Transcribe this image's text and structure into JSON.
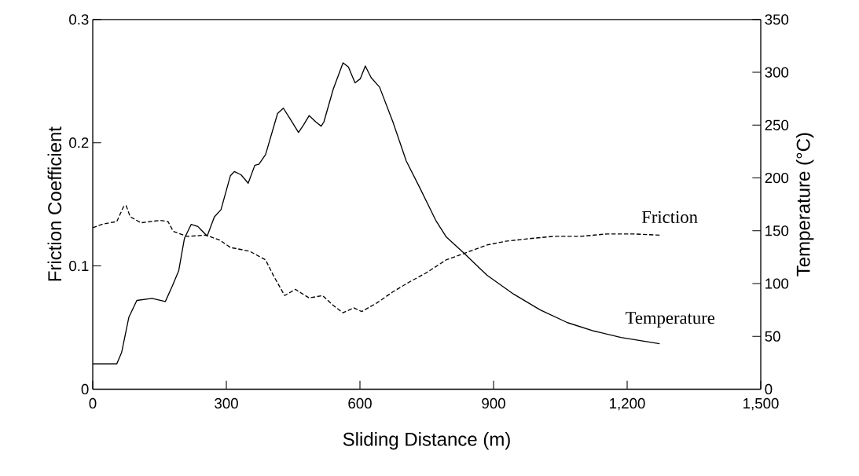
{
  "chart_data": {
    "type": "line",
    "xlabel": "Sliding Distance (m)",
    "ylabel": "Friction Coefficient",
    "y2label": "Temperature (°C)",
    "xlim": [
      0,
      1500
    ],
    "xticks": [
      0,
      300,
      600,
      900,
      {
        "value": 1200,
        "label": "1,200"
      },
      {
        "value": 1500,
        "label": "1,500"
      }
    ],
    "ylim": [
      0,
      0.3
    ],
    "yticks": [
      0,
      0.1,
      0.2,
      0.3
    ],
    "y2lim": [
      0,
      350
    ],
    "y2ticks": [
      0,
      50,
      100,
      150,
      200,
      250,
      300,
      350
    ],
    "grid": false,
    "legend": false,
    "marker": "none",
    "series": [
      {
        "name": "Friction",
        "color": "#000000",
        "line_style": "dashed",
        "x": [
          0,
          23,
          54,
          69,
          75,
          84,
          108,
          151,
          169,
          181,
          212,
          254,
          285,
          309,
          352,
          388,
          406,
          431,
          455,
          486,
          516,
          540,
          562,
          586,
          604,
          638,
          674,
          711,
          747,
          794,
          833,
          885,
          927,
          975,
          1035,
          1095,
          1155,
          1215,
          1273
        ],
        "values": [
          0.131,
          0.134,
          0.136,
          0.148,
          0.149,
          0.14,
          0.135,
          0.137,
          0.136,
          0.128,
          0.124,
          0.125,
          0.121,
          0.115,
          0.112,
          0.105,
          0.092,
          0.076,
          0.081,
          0.074,
          0.076,
          0.068,
          0.062,
          0.066,
          0.063,
          0.07,
          0.079,
          0.087,
          0.094,
          0.105,
          0.11,
          0.117,
          0.12,
          0.122,
          0.124,
          0.124,
          0.126,
          0.126,
          0.125
        ]
      },
      {
        "name": "Temperature",
        "color": "#000000",
        "line_style": "solid",
        "axis": "y2",
        "x": [
          0,
          54,
          65,
          81,
          99,
          133,
          163,
          178,
          193,
          206,
          221,
          236,
          257,
          273,
          288,
          309,
          318,
          333,
          349,
          364,
          373,
          388,
          406,
          415,
          428,
          443,
          462,
          473,
          486,
          501,
          513,
          519,
          540,
          562,
          574,
          589,
          601,
          612,
          625,
          644,
          674,
          704,
          734,
          770,
          794,
          833,
          885,
          945,
          1005,
          1066,
          1126,
          1186,
          1273
        ],
        "values": [
          24,
          24,
          35,
          68,
          84,
          86,
          83,
          97,
          112,
          143,
          156,
          154,
          145,
          163,
          170,
          202,
          206,
          203,
          195,
          212,
          213,
          222,
          248,
          261,
          266,
          256,
          243,
          250,
          259,
          253,
          249,
          253,
          284,
          309,
          305,
          290,
          294,
          306,
          295,
          286,
          253,
          216,
          191,
          160,
          144,
          129,
          108,
          90,
          75,
          63,
          55,
          49,
          43
        ]
      }
    ]
  }
}
